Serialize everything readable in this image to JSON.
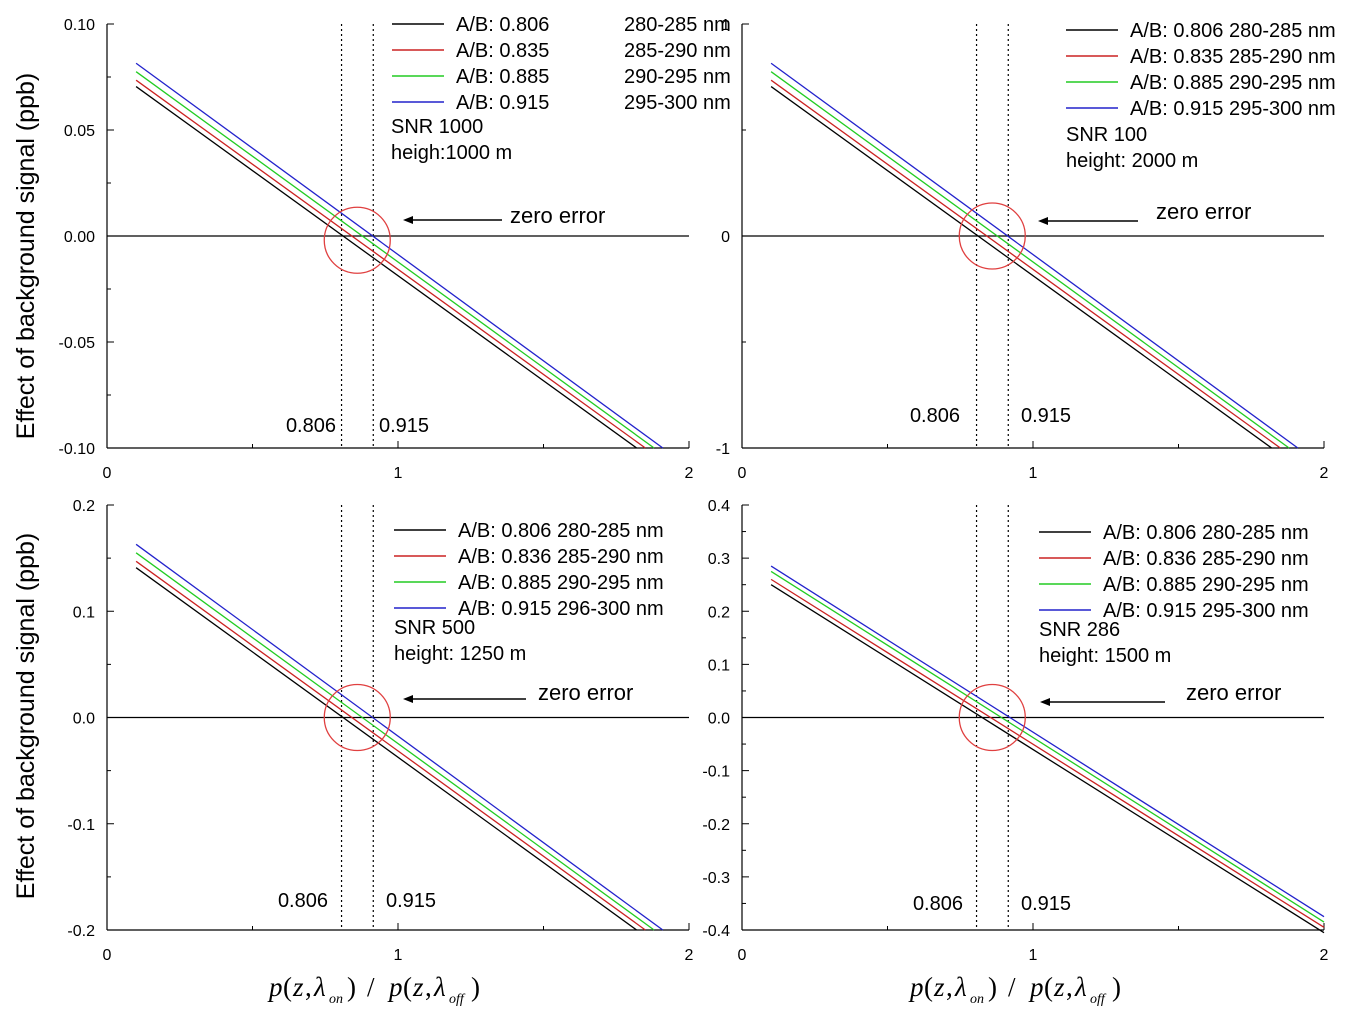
{
  "figure": {
    "ylabel": "Effect of background signal (ppb)",
    "xlabel": {
      "p": "p",
      "open": "(",
      "z": "z",
      "comma": ",",
      "lambda": "λ",
      "on": "on",
      "off": "off",
      "close": ")",
      "slash": "/"
    }
  },
  "colors": {
    "series": [
      "#000000",
      "#cc2222",
      "#22cc22",
      "#2222cc"
    ],
    "circle": "#e04040",
    "axis": "#000000"
  },
  "chart_data": [
    {
      "type": "line",
      "title": "",
      "xlim": [
        0,
        2
      ],
      "ylim": [
        -0.1,
        0.1
      ],
      "xticks": [
        0,
        1,
        2
      ],
      "xticklabels": [
        "0",
        "1",
        "2"
      ],
      "yticks": [
        0.1,
        0.05,
        0.0,
        -0.05,
        -0.1
      ],
      "yticklabels": [
        "0.10",
        "0.05",
        "0.00",
        "-0.05",
        "-0.10"
      ],
      "legend": [
        {
          "label": "A/B: 0.806",
          "range": "280-285 nm"
        },
        {
          "label": "A/B: 0.835",
          "range": "285-290 nm"
        },
        {
          "label": "A/B: 0.885",
          "range": "290-295 nm"
        },
        {
          "label": "A/B: 0.915",
          "range": "295-300 nm"
        }
      ],
      "series": [
        {
          "name": "A/B: 0.806 280-285 nm",
          "x": [
            0.1,
            1.82
          ],
          "y": [
            0.0705,
            -0.1
          ]
        },
        {
          "name": "A/B: 0.835 285-290 nm",
          "x": [
            0.1,
            1.85
          ],
          "y": [
            0.0735,
            -0.1
          ]
        },
        {
          "name": "A/B: 0.885 290-295 nm",
          "x": [
            0.1,
            1.88
          ],
          "y": [
            0.0775,
            -0.1
          ]
        },
        {
          "name": "A/B: 0.915 295-300 nm",
          "x": [
            0.1,
            1.91
          ],
          "y": [
            0.0815,
            -0.1
          ]
        }
      ],
      "vlines": [
        0.806,
        0.915
      ],
      "vline_labels": [
        "0.806",
        "0.915"
      ],
      "snr": "SNR 1000",
      "height": "heigh:1000 m",
      "annotation": "zero error",
      "circle_center": [
        0.86,
        -0.002
      ]
    },
    {
      "type": "line",
      "title": "",
      "xlim": [
        0,
        2
      ],
      "ylim": [
        -1,
        1
      ],
      "xticks": [
        0,
        1,
        2
      ],
      "xticklabels": [
        "0",
        "1",
        "2"
      ],
      "yticks": [
        1,
        0,
        -1
      ],
      "yticklabels": [
        "1",
        "0",
        "-1"
      ],
      "legend": [
        {
          "label": "A/B: 0.806 280-285 nm",
          "range": ""
        },
        {
          "label": "A/B: 0.835 285-290 nm",
          "range": ""
        },
        {
          "label": "A/B: 0.885 290-295 nm",
          "range": ""
        },
        {
          "label": "A/B: 0.915 295-300 nm",
          "range": ""
        }
      ],
      "series": [
        {
          "name": "A/B: 0.806 280-285 nm",
          "x": [
            0.1,
            1.82
          ],
          "y": [
            0.705,
            -1.0
          ]
        },
        {
          "name": "A/B: 0.835 285-290 nm",
          "x": [
            0.1,
            1.85
          ],
          "y": [
            0.735,
            -1.0
          ]
        },
        {
          "name": "A/B: 0.885 290-295 nm",
          "x": [
            0.1,
            1.88
          ],
          "y": [
            0.775,
            -1.0
          ]
        },
        {
          "name": "A/B: 0.915 295-300 nm",
          "x": [
            0.1,
            1.91
          ],
          "y": [
            0.815,
            -1.0
          ]
        }
      ],
      "vlines": [
        0.806,
        0.915
      ],
      "vline_labels": [
        "0.806",
        "0.915"
      ],
      "snr": "SNR 100",
      "height": "height: 2000 m",
      "annotation": "zero error",
      "circle_center": [
        0.86,
        0.0
      ]
    },
    {
      "type": "line",
      "title": "",
      "xlim": [
        0,
        2
      ],
      "ylim": [
        -0.2,
        0.2
      ],
      "xticks": [
        0,
        1,
        2
      ],
      "xticklabels": [
        "0",
        "1",
        "2"
      ],
      "yticks": [
        0.2,
        0.1,
        0.0,
        -0.1,
        -0.2
      ],
      "yticklabels": [
        "0.2",
        "0.1",
        "0.0",
        "-0.1",
        "-0.2"
      ],
      "legend": [
        {
          "label": "A/B: 0.806 280-285 nm",
          "range": ""
        },
        {
          "label": "A/B: 0.836 285-290 nm",
          "range": ""
        },
        {
          "label": "A/B: 0.885 290-295 nm",
          "range": ""
        },
        {
          "label": "A/B: 0.915 296-300 nm",
          "range": ""
        }
      ],
      "series": [
        {
          "name": "A/B: 0.806 280-285 nm",
          "x": [
            0.1,
            1.82
          ],
          "y": [
            0.141,
            -0.2
          ]
        },
        {
          "name": "A/B: 0.836 285-290 nm",
          "x": [
            0.1,
            1.85
          ],
          "y": [
            0.147,
            -0.2
          ]
        },
        {
          "name": "A/B: 0.885 290-295 nm",
          "x": [
            0.1,
            1.88
          ],
          "y": [
            0.155,
            -0.2
          ]
        },
        {
          "name": "A/B: 0.915 296-300 nm",
          "x": [
            0.1,
            1.91
          ],
          "y": [
            0.163,
            -0.2
          ]
        }
      ],
      "vlines": [
        0.806,
        0.915
      ],
      "vline_labels": [
        "0.806",
        "0.915"
      ],
      "snr": "SNR 500",
      "height": "height: 1250 m",
      "annotation": "zero error",
      "circle_center": [
        0.86,
        0.0
      ]
    },
    {
      "type": "line",
      "title": "",
      "xlim": [
        0,
        2
      ],
      "ylim": [
        -0.4,
        0.4
      ],
      "xticks": [
        0,
        1,
        2
      ],
      "xticklabels": [
        "0",
        "1",
        "2"
      ],
      "yticks": [
        0.4,
        0.3,
        0.2,
        0.1,
        0.0,
        -0.1,
        -0.2,
        -0.3,
        -0.4
      ],
      "yticklabels": [
        "0.4",
        "0.3",
        "0.2",
        "0.1",
        "0.0",
        "-0.1",
        "-0.2",
        "-0.3",
        "-0.4"
      ],
      "legend": [
        {
          "label": "A/B: 0.806 280-285 nm",
          "range": ""
        },
        {
          "label": "A/B: 0.836 285-290 nm",
          "range": ""
        },
        {
          "label": "A/B: 0.885 290-295 nm",
          "range": ""
        },
        {
          "label": "A/B: 0.915 295-300 nm",
          "range": ""
        }
      ],
      "series": [
        {
          "name": "A/B: 0.806 280-285 nm",
          "x": [
            0.1,
            2.0
          ],
          "y": [
            0.25,
            -0.405
          ]
        },
        {
          "name": "A/B: 0.836 285-290 nm",
          "x": [
            0.1,
            2.0
          ],
          "y": [
            0.26,
            -0.395
          ]
        },
        {
          "name": "A/B: 0.885 290-295 nm",
          "x": [
            0.1,
            2.0
          ],
          "y": [
            0.275,
            -0.385
          ]
        },
        {
          "name": "A/B: 0.915 295-300 nm",
          "x": [
            0.1,
            2.0
          ],
          "y": [
            0.285,
            -0.375
          ]
        }
      ],
      "vlines": [
        0.806,
        0.915
      ],
      "vline_labels": [
        "0.806",
        "0.915"
      ],
      "snr": "SNR 286",
      "height": "height: 1500 m",
      "annotation": "zero error",
      "circle_center": [
        0.86,
        0.0
      ]
    }
  ]
}
